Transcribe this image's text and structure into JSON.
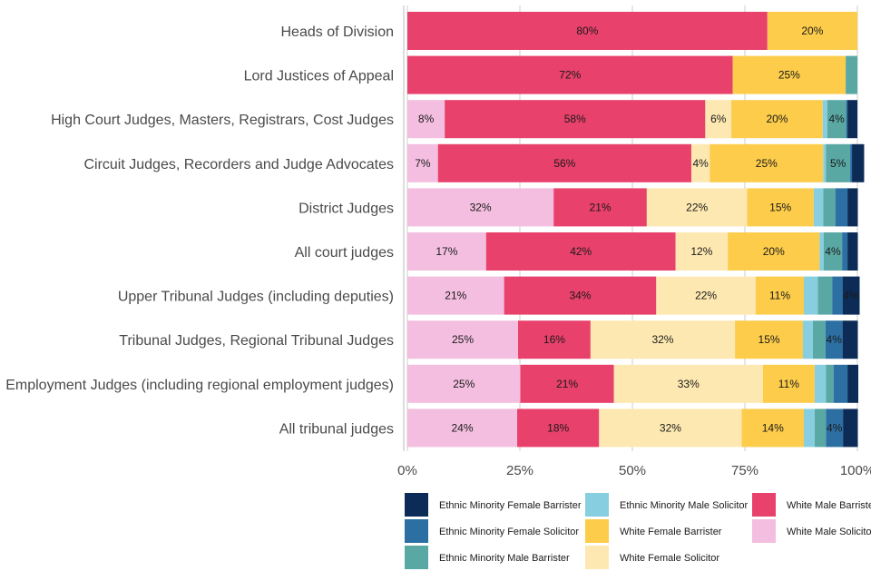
{
  "chart_data": {
    "type": "bar",
    "orientation": "horizontal",
    "stacked": true,
    "percent": true,
    "title": "",
    "xlabel": "",
    "ylabel": "",
    "xlim": [
      0,
      100
    ],
    "x_ticks": [
      "0%",
      "25%",
      "50%",
      "75%",
      "100%"
    ],
    "grid": true,
    "legend_position": "bottom",
    "categories": [
      "Heads of Division",
      "Lord Justices of Appeal",
      "High Court Judges, Masters, Registrars, Cost Judges",
      "Circuit Judges, Recorders and Judge Advocates",
      "District Judges",
      "All court judges",
      "Upper Tribunal Judges (including deputies)",
      "Tribunal Judges, Regional Tribunal Judges",
      "Employment Judges (including regional employment judges)",
      "All tribunal judges"
    ],
    "series": [
      {
        "name": "White Male Solicitor",
        "color": "#f3bedf",
        "values": [
          0,
          0,
          8.3,
          6.8,
          32.5,
          17.5,
          21.5,
          24.6,
          25.1,
          24.4
        ],
        "labels": [
          "",
          "",
          "8%",
          "7%",
          "32%",
          "17%",
          "21%",
          "25%",
          "25%",
          "24%"
        ]
      },
      {
        "name": "White Male Barrister",
        "color": "#e8416b",
        "values": [
          80,
          72.3,
          57.9,
          56.3,
          20.7,
          42.1,
          33.8,
          16.1,
          20.8,
          18.2
        ],
        "labels": [
          "80%",
          "72%",
          "58%",
          "56%",
          "21%",
          "42%",
          "34%",
          "16%",
          "21%",
          "18%"
        ]
      },
      {
        "name": "White Female Solicitor",
        "color": "#fde8b1",
        "values": [
          0,
          0,
          5.8,
          4.1,
          22.3,
          11.6,
          22.1,
          32.1,
          33.1,
          31.7
        ],
        "labels": [
          "",
          "",
          "6%",
          "4%",
          "22%",
          "12%",
          "22%",
          "32%",
          "33%",
          "32%"
        ]
      },
      {
        "name": "White Female Barrister",
        "color": "#fccc4a",
        "values": [
          20,
          25.1,
          20.3,
          25.2,
          14.8,
          20.4,
          10.7,
          15.1,
          11.5,
          13.8
        ],
        "labels": [
          "20%",
          "25%",
          "20%",
          "25%",
          "15%",
          "20%",
          "11%",
          "15%",
          "11%",
          "14%"
        ]
      },
      {
        "name": "Ethnic Minority Male Solicitor",
        "color": "#87cee1",
        "values": [
          0,
          0,
          1.0,
          0.6,
          2.1,
          0.9,
          3.1,
          2.2,
          2.5,
          2.4
        ],
        "labels": [
          "",
          "",
          "",
          "",
          "",
          "",
          "",
          "",
          "",
          ""
        ]
      },
      {
        "name": "Ethnic Minority Male Barrister",
        "color": "#5aa8a3",
        "values": [
          0,
          2.6,
          4.2,
          5.4,
          2.7,
          4.1,
          3.2,
          2.8,
          1.7,
          2.5
        ],
        "labels": [
          "",
          "",
          "4%",
          "5%",
          "",
          "4%",
          "",
          "",
          "",
          ""
        ]
      },
      {
        "name": "Ethnic Minority Female Solicitor",
        "color": "#2c6fa3",
        "values": [
          0,
          0,
          0.3,
          0.4,
          2.7,
          1.2,
          2.3,
          3.8,
          3.1,
          3.8
        ],
        "labels": [
          "",
          "",
          "",
          "",
          "",
          "",
          "",
          "4%",
          "",
          "4%"
        ]
      },
      {
        "name": "Ethnic Minority Female Barrister",
        "color": "#0c2c57",
        "values": [
          0,
          0,
          2.2,
          2.7,
          2.3,
          2.3,
          3.8,
          3.4,
          2.4,
          3.3
        ],
        "labels": [
          "",
          "",
          "",
          "",
          "",
          "",
          "4%",
          "",
          "",
          ""
        ]
      }
    ],
    "legend": [
      "Ethnic Minority Female Barrister",
      "Ethnic Minority Female Solicitor",
      "Ethnic Minority Male Barrister",
      "Ethnic Minority Male Solicitor",
      "White Female Barrister",
      "White Female Solicitor",
      "White Male Barriste",
      "White Male Solicitor"
    ]
  }
}
